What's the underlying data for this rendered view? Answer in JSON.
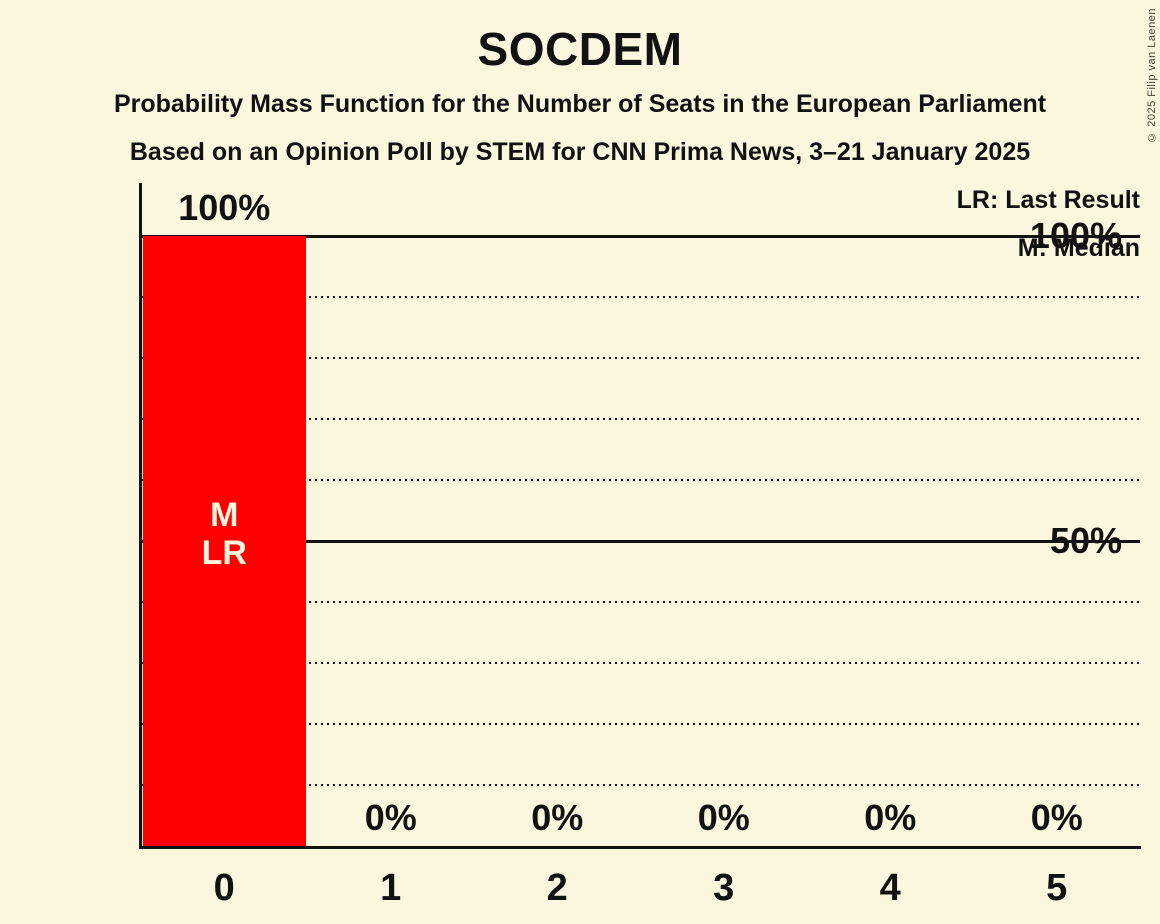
{
  "title": "SOCDEM",
  "subtitles": [
    "Probability Mass Function for the Number of Seats in the European Parliament",
    "Based on an Opinion Poll by STEM for CNN Prima News, 3–21 January 2025"
  ],
  "legend": {
    "lr": "LR: Last Result",
    "m": "M: Median"
  },
  "copyright": "© 2025 Filip van Laenen",
  "colors": {
    "background": "#FBF6DE",
    "bar": "#FF0000",
    "text": "#121212",
    "bar_text": "#FBF6DE"
  },
  "chart_data": {
    "type": "bar",
    "title": "SOCDEM",
    "categories": [
      "0",
      "1",
      "2",
      "3",
      "4",
      "5"
    ],
    "values": [
      100,
      0,
      0,
      0,
      0,
      0
    ],
    "value_labels": [
      "100%",
      "0%",
      "0%",
      "0%",
      "0%",
      "0%"
    ],
    "xlabel": "",
    "ylabel": "",
    "ylim": [
      0,
      100
    ],
    "y_ticks": [
      {
        "label": "100%",
        "value": 100
      },
      {
        "label": "50%",
        "value": 50
      }
    ],
    "gridlines": {
      "solid_at": [
        100,
        50
      ],
      "dotted_at": [
        90,
        80,
        70,
        60,
        40,
        30,
        20,
        10
      ]
    },
    "bar_annotations": [
      {
        "bar_index": 0,
        "lines": [
          "M",
          "LR"
        ]
      }
    ],
    "legend_position": "top-right",
    "legend_entries": [
      "LR: Last Result",
      "M: Median"
    ]
  }
}
